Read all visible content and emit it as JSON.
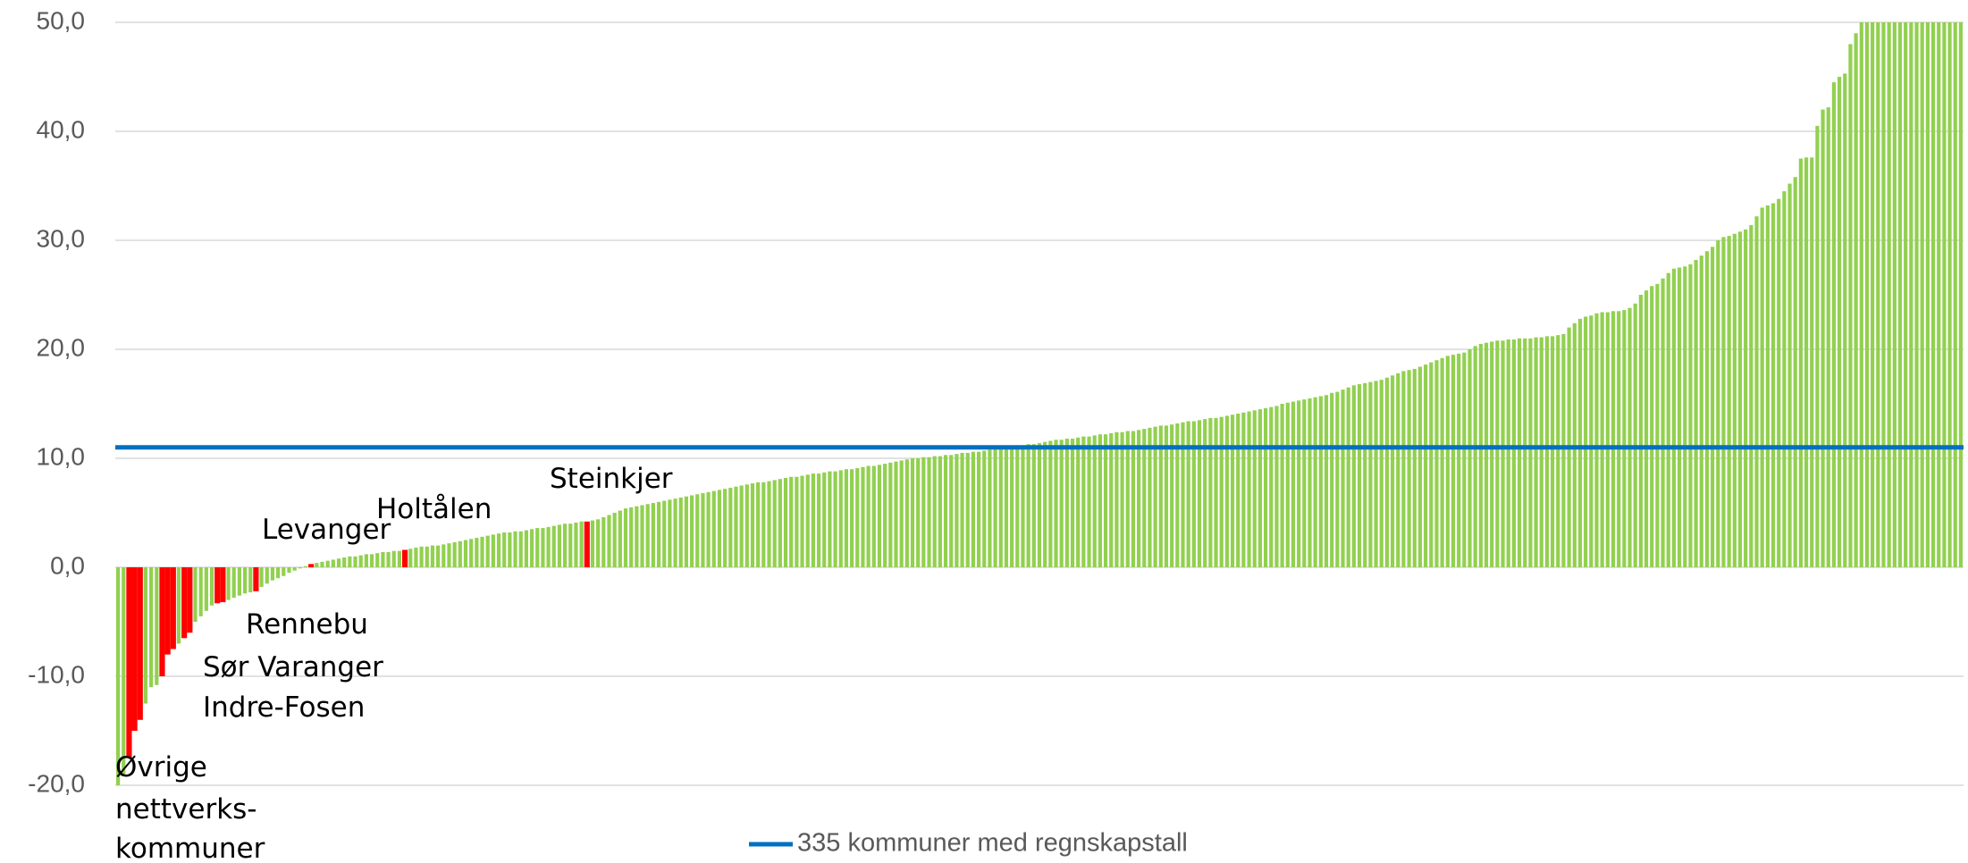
{
  "chart_data": {
    "type": "bar",
    "series": [
      {
        "name": "335 kommuner med regnskapstall",
        "type": "hline",
        "color": "#0070c0",
        "values": [
          11.0
        ]
      }
    ],
    "values": [
      -20.0,
      -19.0,
      -17.5,
      -15.0,
      -14.0,
      -12.5,
      -11.0,
      -10.8,
      -10.0,
      -8.0,
      -7.5,
      -7.0,
      -6.5,
      -6.0,
      -5.0,
      -4.5,
      -4.0,
      -3.5,
      -3.3,
      -3.2,
      -3.0,
      -2.8,
      -2.6,
      -2.4,
      -2.3,
      -2.2,
      -1.8,
      -1.5,
      -1.2,
      -1.0,
      -0.8,
      -0.5,
      -0.3,
      -0.1,
      0.1,
      0.3,
      0.4,
      0.5,
      0.6,
      0.7,
      0.8,
      0.9,
      1.0,
      1.0,
      1.1,
      1.2,
      1.2,
      1.3,
      1.4,
      1.4,
      1.5,
      1.5,
      1.6,
      1.7,
      1.8,
      1.9,
      1.9,
      2.0,
      2.0,
      2.1,
      2.2,
      2.3,
      2.4,
      2.5,
      2.6,
      2.7,
      2.8,
      2.9,
      3.0,
      3.1,
      3.2,
      3.2,
      3.3,
      3.3,
      3.4,
      3.5,
      3.6,
      3.6,
      3.7,
      3.8,
      3.9,
      4.0,
      4.0,
      4.1,
      4.2,
      4.2,
      4.3,
      4.4,
      4.6,
      4.8,
      5.0,
      5.2,
      5.4,
      5.5,
      5.6,
      5.7,
      5.8,
      5.9,
      6.0,
      6.1,
      6.2,
      6.3,
      6.4,
      6.5,
      6.6,
      6.7,
      6.8,
      6.9,
      7.0,
      7.1,
      7.2,
      7.3,
      7.4,
      7.5,
      7.6,
      7.7,
      7.8,
      7.8,
      7.9,
      8.0,
      8.1,
      8.2,
      8.3,
      8.3,
      8.4,
      8.5,
      8.6,
      8.6,
      8.7,
      8.8,
      8.8,
      8.9,
      9.0,
      9.0,
      9.1,
      9.2,
      9.3,
      9.3,
      9.4,
      9.5,
      9.6,
      9.7,
      9.8,
      9.9,
      10.0,
      10.0,
      10.1,
      10.1,
      10.2,
      10.2,
      10.3,
      10.3,
      10.4,
      10.5,
      10.5,
      10.6,
      10.6,
      10.7,
      10.8,
      10.9,
      11.0,
      11.0,
      11.1,
      11.2,
      11.2,
      11.3,
      11.3,
      11.4,
      11.5,
      11.6,
      11.7,
      11.7,
      11.8,
      11.8,
      11.9,
      12.0,
      12.0,
      12.1,
      12.2,
      12.2,
      12.3,
      12.4,
      12.4,
      12.5,
      12.5,
      12.6,
      12.7,
      12.8,
      12.9,
      13.0,
      13.0,
      13.1,
      13.2,
      13.3,
      13.4,
      13.4,
      13.5,
      13.6,
      13.7,
      13.7,
      13.8,
      13.9,
      14.0,
      14.1,
      14.2,
      14.3,
      14.4,
      14.5,
      14.6,
      14.7,
      14.8,
      15.0,
      15.1,
      15.2,
      15.3,
      15.4,
      15.5,
      15.6,
      15.7,
      15.8,
      16.0,
      16.1,
      16.3,
      16.5,
      16.7,
      16.8,
      16.9,
      17.0,
      17.1,
      17.2,
      17.4,
      17.6,
      17.8,
      18.0,
      18.1,
      18.2,
      18.4,
      18.6,
      18.8,
      19.0,
      19.2,
      19.4,
      19.5,
      19.6,
      19.7,
      20.0,
      20.3,
      20.5,
      20.6,
      20.7,
      20.8,
      20.8,
      20.9,
      20.9,
      21.0,
      21.0,
      21.0,
      21.1,
      21.1,
      21.2,
      21.2,
      21.3,
      21.4,
      22.0,
      22.4,
      22.8,
      23.0,
      23.1,
      23.3,
      23.4,
      23.4,
      23.5,
      23.5,
      23.6,
      23.8,
      24.2,
      25.0,
      25.4,
      25.8,
      26.0,
      26.5,
      27.0,
      27.4,
      27.5,
      27.6,
      27.8,
      28.2,
      28.6,
      29.0,
      29.4,
      30.0,
      30.3,
      30.4,
      30.6,
      30.8,
      31.0,
      31.4,
      32.2,
      33.0,
      33.2,
      33.4,
      33.8,
      34.5,
      35.2,
      35.8,
      37.5,
      37.6,
      37.6,
      40.5,
      42.0,
      42.2,
      44.5,
      45.0,
      45.3,
      48.0,
      49.0,
      50.0,
      50.0,
      50.0,
      50.0,
      50.0,
      50.0,
      50.0,
      50.0,
      50.0,
      50.0,
      50.0,
      50.0,
      50.0,
      50.0,
      50.0,
      50.0,
      50.0,
      50.0,
      50.0
    ],
    "color": "#92d050",
    "highlight_color": "#ff0000",
    "highlighted": [
      2,
      3,
      4,
      8,
      9,
      10,
      12,
      13,
      18,
      19,
      25,
      35,
      52,
      85
    ],
    "annotations": [
      "Øvrige",
      "nettverks-",
      "kommuner",
      "Indre-Fosen",
      "Sør Varanger",
      "Rennebu",
      "Levanger",
      "Holtålen",
      "Steinkjer"
    ],
    "ylim": [
      -20,
      50
    ],
    "yticks": [
      {
        "value": -20,
        "label": "-20,0"
      },
      {
        "value": -10,
        "label": "-10,0"
      },
      {
        "value": 0,
        "label": "0,0"
      },
      {
        "value": 10,
        "label": "10,0"
      },
      {
        "value": 20,
        "label": "20,0"
      },
      {
        "value": 30,
        "label": "30,0"
      },
      {
        "value": 40,
        "label": "40,0"
      },
      {
        "value": 50,
        "label": "50,0"
      }
    ],
    "grid": true,
    "legend": "bottom"
  }
}
